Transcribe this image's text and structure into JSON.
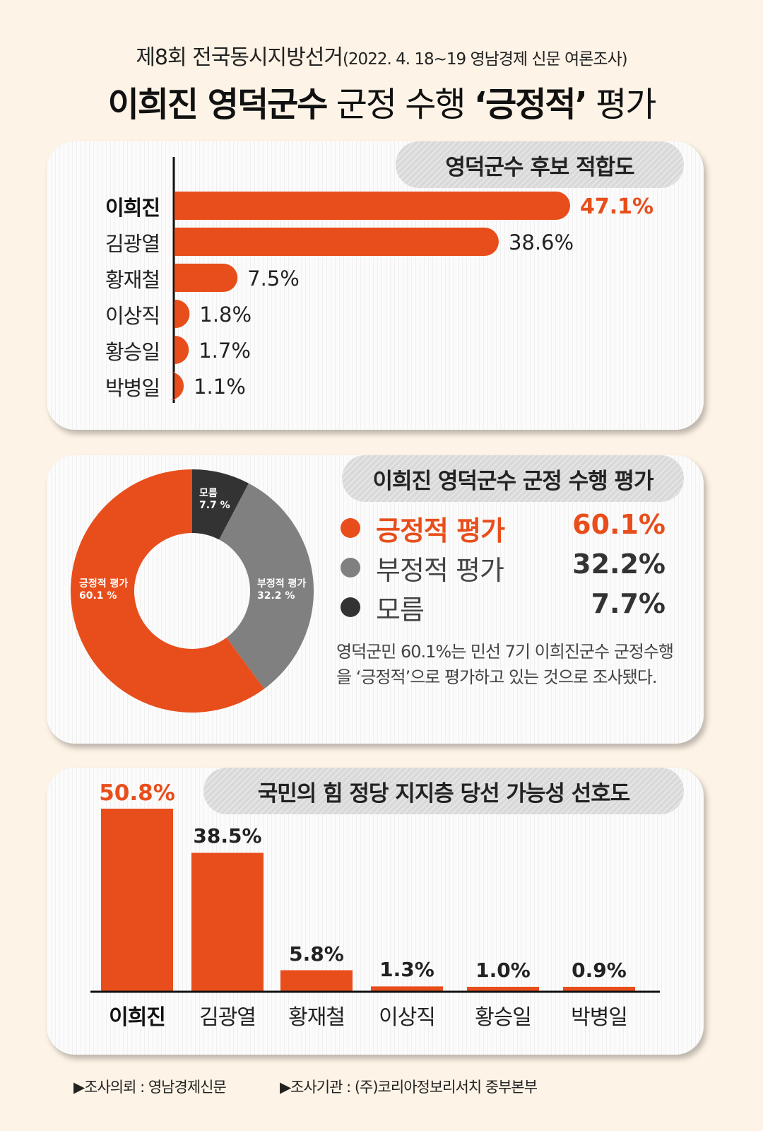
{
  "header": {
    "subtitle_main": "제8회 전국동시지방선거",
    "subtitle_detail": "(2022. 4. 18~19 영남경제 신문 여론조사)",
    "title_bold": "이희진 영덕군수",
    "title_mid": " 군정 수행 ",
    "title_quote": "‘긍정적’",
    "title_end": " 평가"
  },
  "colors": {
    "accent": "#e84e1b",
    "gray": "#808080",
    "dark": "#333333",
    "background": "#fdf3e6"
  },
  "chart_data": [
    {
      "type": "bar",
      "orientation": "horizontal",
      "title": "영덕군수 후보 적합도",
      "categories": [
        "이희진",
        "김광열",
        "황재철",
        "이상직",
        "황승일",
        "박병일"
      ],
      "values": [
        47.1,
        38.6,
        7.5,
        1.8,
        1.7,
        1.1
      ],
      "value_labels": [
        "47.1%",
        "38.6%",
        "7.5%",
        "1.8%",
        "1.7%",
        "1.1%"
      ],
      "unit": "%",
      "color": "#e84e1b"
    },
    {
      "type": "pie",
      "style": "donut",
      "title": "이희진 영덕군수 군정 수행 평가",
      "categories": [
        "긍정적 평가",
        "부정적 평가",
        "모름"
      ],
      "values": [
        60.1,
        32.2,
        7.7
      ],
      "value_labels": [
        "60.1%",
        "32.2%",
        "7.7%"
      ],
      "slice_labels": [
        "60.1 %",
        "32.2 %",
        "7.7 %"
      ],
      "colors": [
        "#e84e1b",
        "#808080",
        "#333333"
      ]
    },
    {
      "type": "bar",
      "orientation": "vertical",
      "title": "국민의 힘 정당 지지층 당선 가능성 선호도",
      "categories": [
        "이희진",
        "김광열",
        "황재철",
        "이상직",
        "황승일",
        "박병일"
      ],
      "values": [
        50.8,
        38.5,
        5.8,
        1.3,
        1.0,
        0.9
      ],
      "value_labels": [
        "50.8%",
        "38.5%",
        "5.8%",
        "1.3%",
        "1.0%",
        "0.9%"
      ],
      "unit": "%",
      "color": "#e84e1b"
    }
  ],
  "note": "영덕군민 60.1%는 민선 7기 이희진군수 군정수행을 ‘긍정적’으로 평가하고 있는 것으로 조사됐다.",
  "footer": {
    "client": "▶조사의뢰 : 영남경제신문",
    "agency": "▶조사기관 : (주)코리아정보리서치 중부본부"
  }
}
